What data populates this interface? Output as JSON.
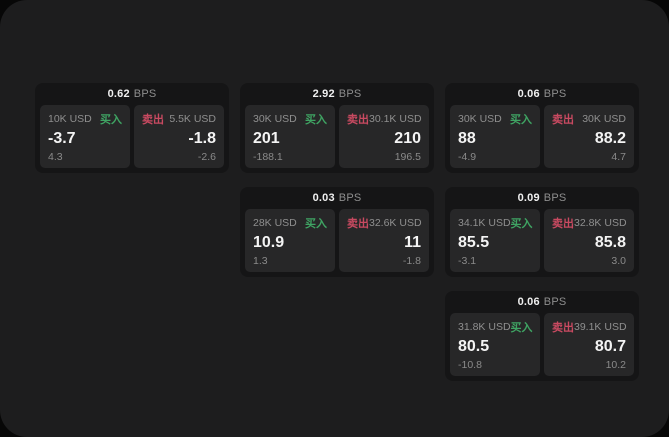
{
  "labels": {
    "bps_unit": "BPS",
    "buy": "买入",
    "sell": "卖出"
  },
  "colors": {
    "page_bg": "#1d1d1e",
    "card_bg": "#151516",
    "panel_bg": "#272728",
    "buy": "#3fa463",
    "sell": "#c94a61"
  },
  "cards": [
    {
      "bps": "0.62",
      "buy": {
        "size": "10K USD",
        "price": "-3.7",
        "delta": "4.3"
      },
      "sell": {
        "size": "5.5K USD",
        "price": "-1.8",
        "delta": "-2.6"
      }
    },
    {
      "bps": "2.92",
      "buy": {
        "size": "30K USD",
        "price": "201",
        "delta": "-188.1"
      },
      "sell": {
        "size": "30.1K USD",
        "price": "210",
        "delta": "196.5"
      }
    },
    {
      "bps": "0.06",
      "buy": {
        "size": "30K USD",
        "price": "88",
        "delta": "-4.9"
      },
      "sell": {
        "size": "30K USD",
        "price": "88.2",
        "delta": "4.7"
      }
    },
    {
      "bps": "0.03",
      "buy": {
        "size": "28K USD",
        "price": "10.9",
        "delta": "1.3"
      },
      "sell": {
        "size": "32.6K USD",
        "price": "11",
        "delta": "-1.8"
      }
    },
    {
      "bps": "0.09",
      "buy": {
        "size": "34.1K USD",
        "price": "85.5",
        "delta": "-3.1"
      },
      "sell": {
        "size": "32.8K USD",
        "price": "85.8",
        "delta": "3.0"
      }
    },
    {
      "bps": "0.06",
      "buy": {
        "size": "31.8K USD",
        "price": "80.5",
        "delta": "-10.8"
      },
      "sell": {
        "size": "39.1K USD",
        "price": "80.7",
        "delta": "10.2"
      }
    }
  ]
}
